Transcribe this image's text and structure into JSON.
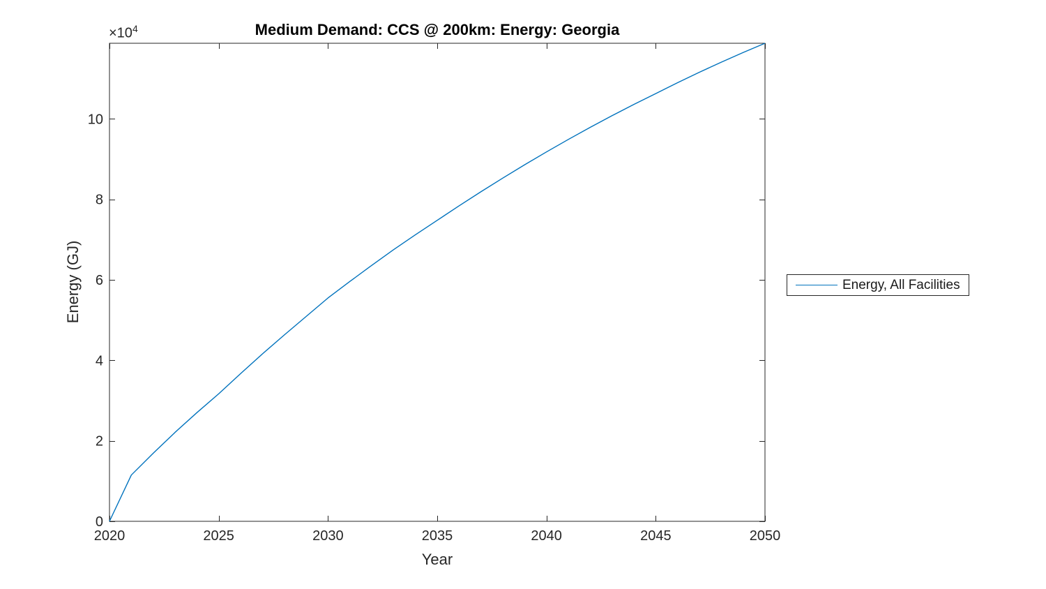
{
  "title": "Medium Demand: CCS @ 200km: Energy: Georgia",
  "axes": {
    "xlabel": "Year",
    "ylabel": "Energy (GJ)",
    "y_exponent_base": "×10",
    "y_exponent_power": "4"
  },
  "legend": {
    "entries": [
      {
        "label": "Energy, All Facilities",
        "color": "#0072BD"
      }
    ]
  },
  "colors": {
    "line": "#0072BD",
    "axis": "#262626",
    "text": "#262626",
    "background": "#ffffff"
  },
  "chart_data": {
    "type": "line",
    "title": "Medium Demand: CCS @ 200km: Energy: Georgia",
    "xlabel": "Year",
    "ylabel": "Energy (GJ)",
    "y_axis_multiplier": "×10^4",
    "grid": false,
    "legend_position": "outside-right",
    "xlim": [
      2020,
      2050
    ],
    "ylim": [
      0,
      118800
    ],
    "xticks": [
      2020,
      2025,
      2030,
      2035,
      2040,
      2045,
      2050
    ],
    "xtick_labels": [
      "2020",
      "2025",
      "2030",
      "2035",
      "2040",
      "2045",
      "2050"
    ],
    "yticks": [
      0,
      20000,
      40000,
      60000,
      80000,
      100000
    ],
    "ytick_labels": [
      "0",
      "2",
      "4",
      "6",
      "8",
      "10"
    ],
    "x": [
      2020,
      2021,
      2022,
      2023,
      2024,
      2025,
      2026,
      2027,
      2028,
      2029,
      2030,
      2031,
      2032,
      2033,
      2034,
      2035,
      2036,
      2037,
      2038,
      2039,
      2040,
      2041,
      2042,
      2043,
      2044,
      2045,
      2046,
      2047,
      2048,
      2049,
      2050
    ],
    "series": [
      {
        "name": "Energy, All Facilities",
        "color": "#0072BD",
        "values": [
          0,
          11500,
          16900,
          22100,
          27000,
          31700,
          36700,
          41600,
          46300,
          50900,
          55500,
          59600,
          63600,
          67500,
          71200,
          74800,
          78400,
          81900,
          85300,
          88600,
          91800,
          94900,
          97900,
          100800,
          103600,
          106300,
          109000,
          111600,
          114100,
          116500,
          118800
        ]
      }
    ]
  }
}
